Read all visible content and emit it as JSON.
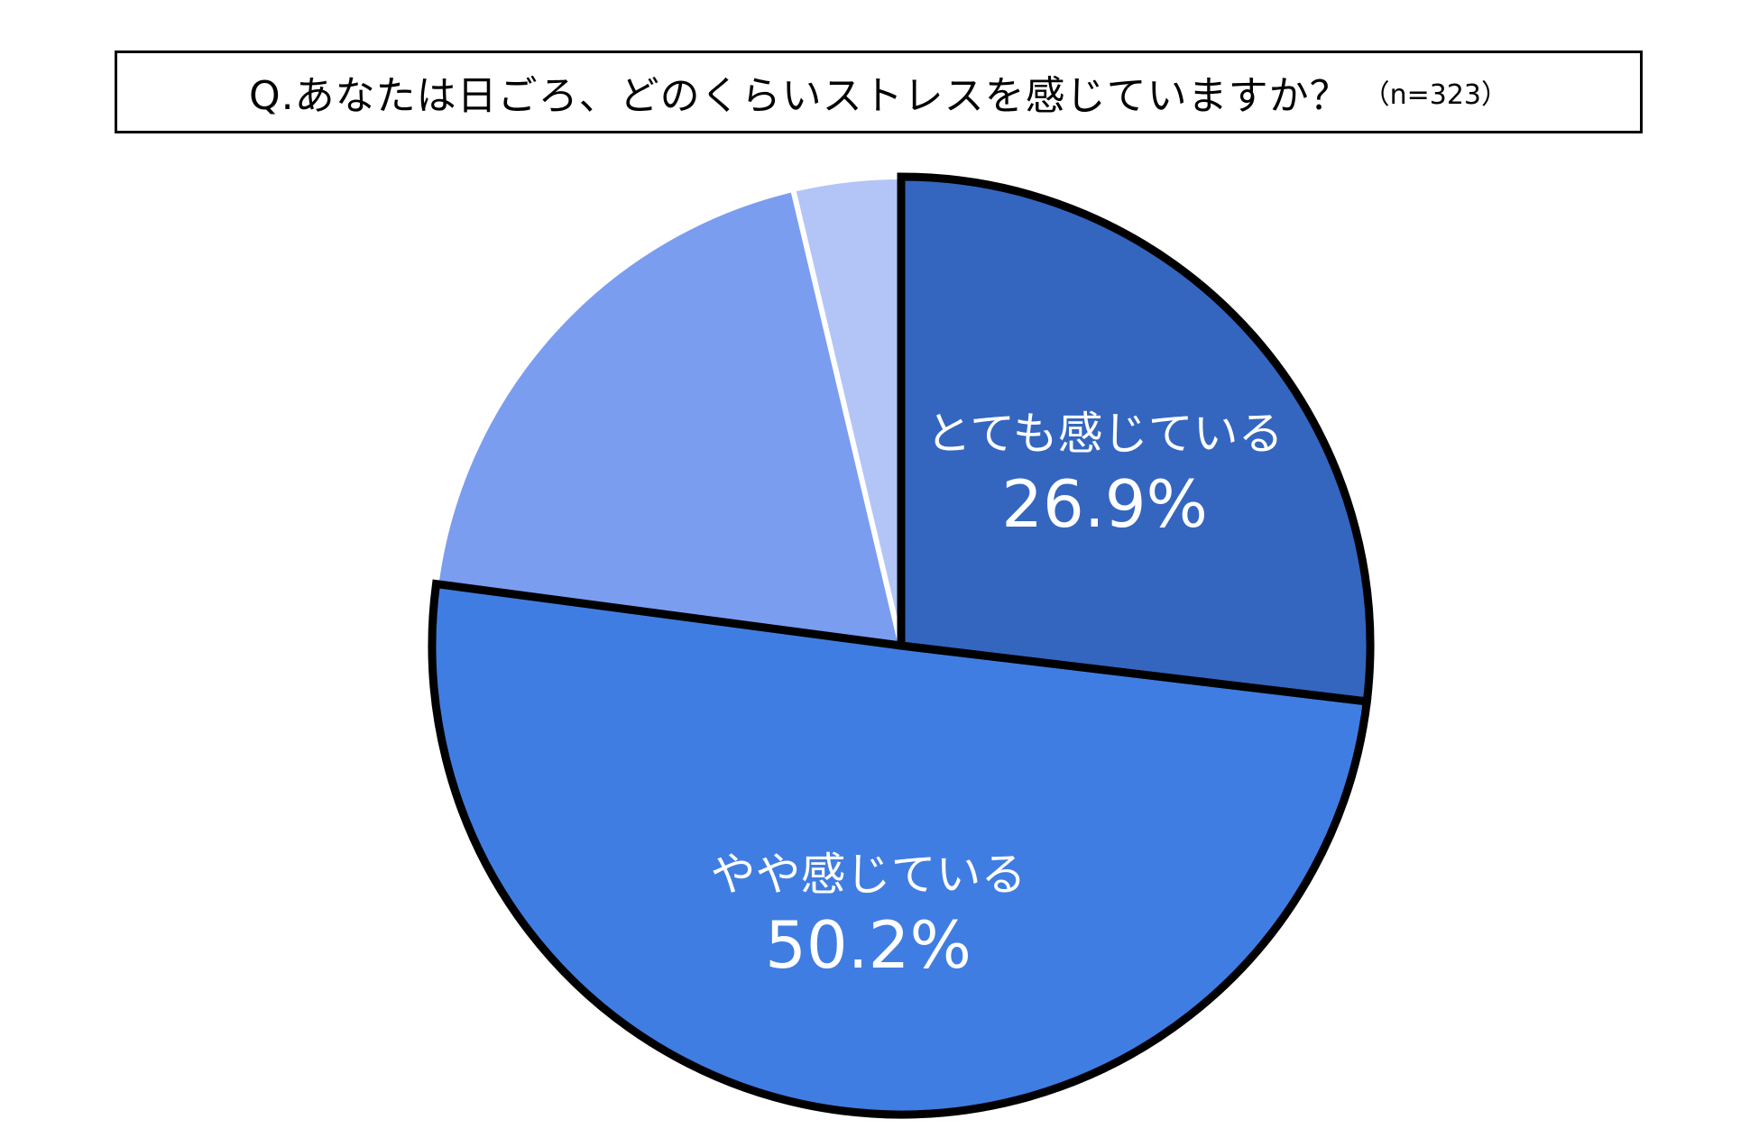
{
  "title": {
    "question": "Q.あなたは日ごろ、どのくらいストレスを感じていますか？",
    "sample": "（n=323）"
  },
  "chart_data": {
    "type": "pie",
    "start": "12 o'clock",
    "direction": "clockwise",
    "slices": [
      {
        "label": "とても感じている",
        "value": 26.9,
        "value_label": "26.9%",
        "color": "#3466c0",
        "emphasized": true
      },
      {
        "label": "やや感じている",
        "value": 50.2,
        "value_label": "50.2%",
        "color": "#407de2",
        "emphasized": true
      },
      {
        "label": "",
        "value": 19.2,
        "value_label": "",
        "color": "#7b9df0",
        "emphasized": false
      },
      {
        "label": "",
        "value": 3.7,
        "value_label": "",
        "color": "#b3c5f6",
        "emphasized": false
      }
    ]
  }
}
